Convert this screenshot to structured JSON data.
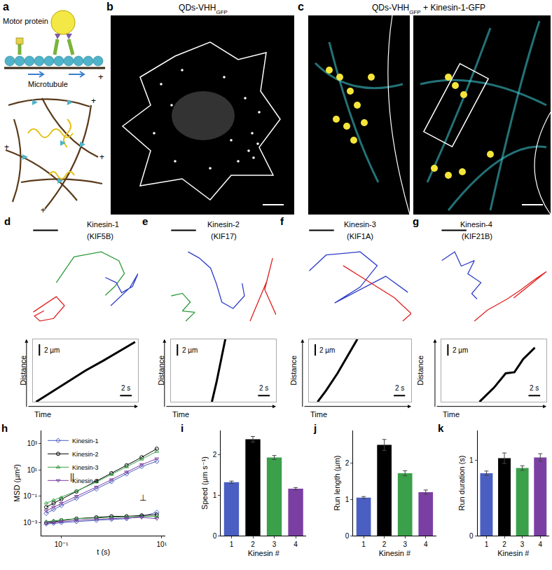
{
  "panels": {
    "a": {
      "label": "a",
      "motor": "Motor protein",
      "track": "Microtubule",
      "plus": "+"
    },
    "b": {
      "label": "b",
      "title": "QDs-VHH",
      "title_subscript": "GFP"
    },
    "c": {
      "label": "c",
      "title": "QDs-VHH",
      "title_subscript": "GFP",
      "title_suffix": " + Kinesin-1-GFP"
    }
  },
  "chart_data": [
    {
      "type": "line",
      "panel_label": "d",
      "title": "Kinesin-1",
      "subtitle": "(KIF5B)",
      "tick_labels": false,
      "series": [
        {
          "color": "#2e9b3a",
          "x": [
            3.2,
            4.5,
            6.5,
            7.8,
            8.2,
            7.5,
            6.8
          ],
          "values": [
            3.8,
            5.8,
            6.2,
            5.5,
            4.5,
            3.5,
            2.8
          ]
        },
        {
          "color": "#e02020",
          "x": [
            1.5,
            2.5,
            3.2,
            3.8,
            3.0,
            2.0,
            1.6,
            2.3
          ],
          "values": [
            1.5,
            2.2,
            2.7,
            2.0,
            1.0,
            0.8,
            1.2,
            1.6
          ]
        },
        {
          "color": "#2f3fc8",
          "x": [
            6.8,
            7.6,
            8.0,
            8.8,
            9.2,
            8.6,
            7.2
          ],
          "values": [
            4.2,
            3.8,
            3.0,
            3.5,
            4.5,
            3.4,
            2.0
          ]
        }
      ]
    },
    {
      "type": "line",
      "panel_label": "e",
      "title": "Kinesin-2",
      "subtitle": "(KIF17)",
      "tick_labels": false,
      "series": [
        {
          "color": "#2f3fc8",
          "x": [
            2.0,
            3.0,
            4.0,
            4.5,
            5.0,
            6.0,
            7.0,
            6.8
          ],
          "values": [
            6.5,
            6.0,
            5.2,
            4.0,
            2.5,
            2.0,
            3.0,
            4.0
          ]
        },
        {
          "color": "#2e9b3a",
          "x": [
            0.5,
            1.5,
            2.2,
            1.5,
            2.6,
            1.8
          ],
          "values": [
            3.0,
            3.2,
            2.5,
            1.8,
            1.7,
            1.0
          ]
        },
        {
          "color": "#e02020",
          "x": [
            7.5,
            8.2,
            9.0,
            9.5,
            8.8,
            9.8
          ],
          "values": [
            1.0,
            2.5,
            4.2,
            6.0,
            3.5,
            1.5
          ]
        }
      ]
    },
    {
      "type": "line",
      "panel_label": "f",
      "title": "Kinesin-3",
      "subtitle": "(KIF1A)",
      "tick_labels": false,
      "series": [
        {
          "color": "#2f3fc8",
          "x": [
            1.0,
            2.0,
            4.0,
            5.0,
            4.0,
            2.5,
            5.5,
            6.8
          ],
          "values": [
            5.0,
            6.5,
            6.8,
            5.5,
            3.5,
            2.0,
            4.5,
            3.0
          ]
        },
        {
          "color": "#e02020",
          "x": [
            3.0,
            4.5,
            6.0,
            7.0,
            6.5
          ],
          "values": [
            5.5,
            4.0,
            2.5,
            1.0,
            0.3
          ]
        }
      ]
    },
    {
      "type": "line",
      "panel_label": "g",
      "title": "Kinesin-4",
      "subtitle": "(KIF21B)",
      "tick_labels": false,
      "series": [
        {
          "color": "#2f3fc8",
          "x": [
            1.5,
            2.5,
            3.0,
            4.0,
            3.5,
            4.5,
            3.8,
            4.2
          ],
          "values": [
            6.0,
            6.8,
            5.5,
            6.0,
            4.8,
            4.0,
            3.0,
            2.5
          ]
        },
        {
          "color": "#e02020",
          "x": [
            4.0,
            5.0,
            6.5,
            7.5,
            8.5,
            9.5,
            7.0
          ],
          "values": [
            0.5,
            1.5,
            2.5,
            3.3,
            4.2,
            5.0,
            2.6
          ]
        }
      ]
    },
    {
      "type": "line",
      "x_label": "Time",
      "y_label": "Distance",
      "xlim": [
        0,
        18
      ],
      "ylim": [
        0,
        11
      ],
      "tick_labels": false,
      "y_scale_bar": {
        "value": 2,
        "label": "2 µm"
      },
      "x_scale_bar": {
        "value": 2,
        "label": "2 s"
      },
      "series": [
        {
          "color": "#000000",
          "x": [
            0.5,
            3,
            6,
            9,
            12,
            15,
            17.5
          ],
          "values": [
            0,
            1.6,
            3.5,
            5.5,
            7.2,
            9.0,
            10.5
          ]
        }
      ]
    },
    {
      "type": "line",
      "x_label": "Time",
      "y_label": "Distance",
      "xlim": [
        0,
        18
      ],
      "ylim": [
        0,
        11
      ],
      "tick_labels": false,
      "y_scale_bar": {
        "value": 2,
        "label": "2 µm"
      },
      "x_scale_bar": {
        "value": 2,
        "label": "2 s"
      },
      "series": [
        {
          "color": "#000000",
          "x": [
            7.0,
            7.8,
            8.6,
            9.3
          ],
          "values": [
            0,
            3.5,
            7.5,
            11
          ]
        }
      ]
    },
    {
      "type": "line",
      "x_label": "Time",
      "y_label": "Distance",
      "xlim": [
        0,
        18
      ],
      "ylim": [
        0,
        11
      ],
      "tick_labels": false,
      "y_scale_bar": {
        "value": 2,
        "label": "2 µm"
      },
      "x_scale_bar": {
        "value": 2,
        "label": "2 s"
      },
      "series": [
        {
          "color": "#000000",
          "x": [
            1.5,
            3,
            5,
            7,
            8.5
          ],
          "values": [
            0,
            2.0,
            5.0,
            8.5,
            11
          ]
        }
      ]
    },
    {
      "type": "line",
      "x_label": "Time",
      "y_label": "Distance",
      "xlim": [
        0,
        18
      ],
      "ylim": [
        0,
        11
      ],
      "tick_labels": false,
      "y_scale_bar": {
        "value": 2,
        "label": "2 µm"
      },
      "x_scale_bar": {
        "value": 2,
        "label": "2 s"
      },
      "series": [
        {
          "color": "#000000",
          "x": [
            6.5,
            9,
            11,
            12.5,
            14,
            16
          ],
          "values": [
            0,
            2.5,
            5.0,
            5.2,
            7.5,
            9.5
          ]
        }
      ]
    },
    {
      "type": "line",
      "panel_label": "h",
      "log": true,
      "x_label": "t (s)",
      "y_label": "MSD (µm²)",
      "xlim": [
        0.04,
        12
      ],
      "ylim": [
        0.0001,
        10000
      ],
      "xticks": [
        {
          "value": 0.1,
          "label": "10⁻¹"
        },
        {
          "value": 10,
          "label": "10¹"
        }
      ],
      "yticks": [
        {
          "value": 0.001,
          "label": "10⁻³"
        },
        {
          "value": 0.1,
          "label": "10⁻¹"
        },
        {
          "value": 10,
          "label": "10¹"
        },
        {
          "value": 1000,
          "label": "10³"
        }
      ],
      "legend": "upper left",
      "annotations": [
        "||",
        "⊥"
      ],
      "x": [
        0.05,
        0.07,
        0.1,
        0.2,
        0.5,
        1,
        2,
        4,
        8
      ],
      "series": [
        {
          "name": "Kinesin-1",
          "color": "#4a5fc1",
          "marker": "diamond",
          "values": [
            0.005,
            0.01,
            0.02,
            0.07,
            0.35,
            1.3,
            5,
            18,
            45
          ],
          "values_perpendicular": [
            0.0008,
            0.0009,
            0.001,
            0.0012,
            0.0015,
            0.0018,
            0.002,
            0.003,
            0.006
          ]
        },
        {
          "name": "Kinesin-2",
          "color": "#000000",
          "marker": "circle",
          "values": [
            0.015,
            0.03,
            0.06,
            0.23,
            1.4,
            5.6,
            22,
            90,
            400
          ],
          "values_perpendicular": [
            0.001,
            0.0012,
            0.0015,
            0.002,
            0.0025,
            0.003,
            0.003,
            0.0035,
            0.004
          ]
        },
        {
          "name": "Kinesin-3",
          "color": "#3aa04a",
          "marker": "triangle-up",
          "values": [
            0.03,
            0.05,
            0.08,
            0.25,
            1.2,
            4.5,
            17,
            65,
            250
          ],
          "values_perpendicular": [
            0.0012,
            0.0014,
            0.0016,
            0.002,
            0.0022,
            0.0025,
            0.0028,
            0.003,
            0.003
          ]
        },
        {
          "name": "Kinesin-4",
          "color": "#7b3fa3",
          "marker": "triangle-down",
          "values": [
            0.008,
            0.015,
            0.03,
            0.1,
            0.5,
            1.8,
            7,
            25,
            70
          ],
          "values_perpendicular": [
            0.0009,
            0.001,
            0.0012,
            0.0015,
            0.0018,
            0.002,
            0.0022,
            0.0025,
            0.002
          ]
        }
      ]
    },
    {
      "type": "bar",
      "panel_label": "i",
      "x_label": "Kinesin #",
      "y_label": "Speed (µm s⁻¹)",
      "categories": [
        "1",
        "2",
        "3",
        "4"
      ],
      "values": [
        1.32,
        2.38,
        1.93,
        1.16
      ],
      "errors": [
        0.03,
        0.07,
        0.05,
        0.03
      ],
      "colors": [
        "#4a5fc1",
        "#000000",
        "#3aa04a",
        "#7b3fa3"
      ],
      "ylim": [
        0,
        2.6
      ],
      "yticks": [
        0,
        1,
        2
      ]
    },
    {
      "type": "bar",
      "panel_label": "j",
      "x_label": "Kinesin #",
      "y_label": "Run length (µm)",
      "categories": [
        "1",
        "2",
        "3",
        "4"
      ],
      "values": [
        1.05,
        2.5,
        1.72,
        1.2
      ],
      "errors": [
        0.03,
        0.15,
        0.07,
        0.06
      ],
      "colors": [
        "#4a5fc1",
        "#000000",
        "#3aa04a",
        "#7b3fa3"
      ],
      "ylim": [
        0,
        2.9
      ],
      "yticks": [
        0,
        1,
        2
      ]
    },
    {
      "type": "bar",
      "panel_label": "k",
      "x_label": "Kinesin #",
      "y_label": "Run duration (s)",
      "categories": [
        "1",
        "2",
        "3",
        "4"
      ],
      "values": [
        0.83,
        1.03,
        0.9,
        1.04
      ],
      "errors": [
        0.03,
        0.07,
        0.03,
        0.05
      ],
      "colors": [
        "#4a5fc1",
        "#000000",
        "#3aa04a",
        "#7b3fa3"
      ],
      "ylim": [
        0,
        1.4
      ],
      "yticks": [
        0,
        1
      ]
    }
  ]
}
